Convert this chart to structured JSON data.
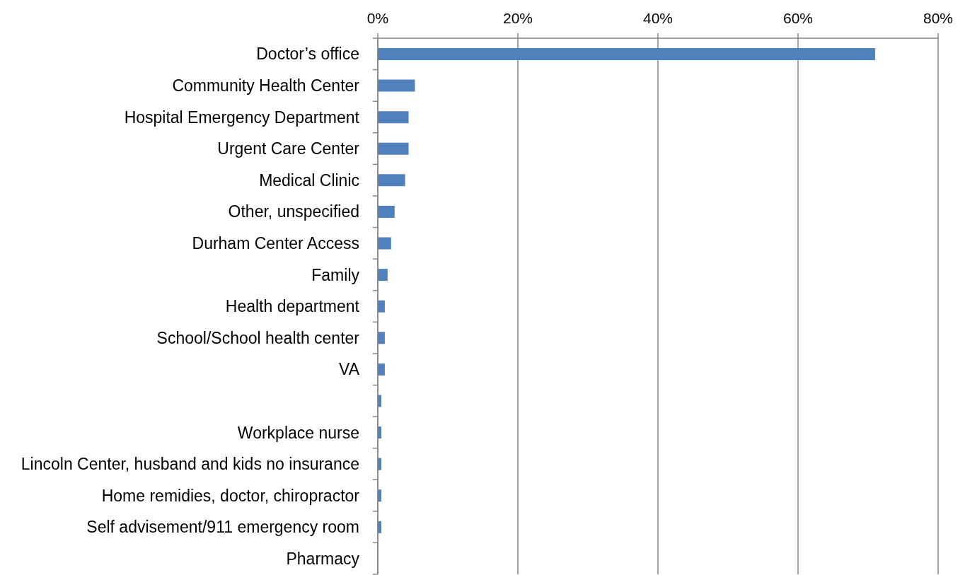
{
  "chart_data": {
    "type": "bar",
    "orientation": "horizontal",
    "categories": [
      "Doctor’s office",
      "Community Health Center",
      "Hospital Emergency Department",
      "Urgent Care Center",
      "Medical Clinic",
      "Other, unspecified",
      "Durham Center Access",
      "Family",
      "Health department",
      "School/School health center",
      "VA",
      null,
      "Workplace nurse",
      "Lincoln Center, husband and kids no insurance",
      "Home remidies, doctor, chiropractor",
      "Self advisement/911 emergency room",
      "Pharmacy"
    ],
    "values": [
      71.0,
      5.3,
      4.4,
      4.4,
      3.9,
      2.4,
      1.9,
      1.4,
      1.0,
      1.0,
      1.0,
      0.5,
      0.5,
      0.5,
      0.5,
      0.5,
      0
    ],
    "color": "#4f81bd",
    "xlim": [
      0,
      80
    ],
    "xticks": [
      {
        "value": 0,
        "label": "0%"
      },
      {
        "value": 20,
        "label": "20%"
      },
      {
        "value": 40,
        "label": "40%"
      },
      {
        "value": 60,
        "label": "60%"
      },
      {
        "value": 80,
        "label": "80%"
      }
    ],
    "grid": "x"
  }
}
